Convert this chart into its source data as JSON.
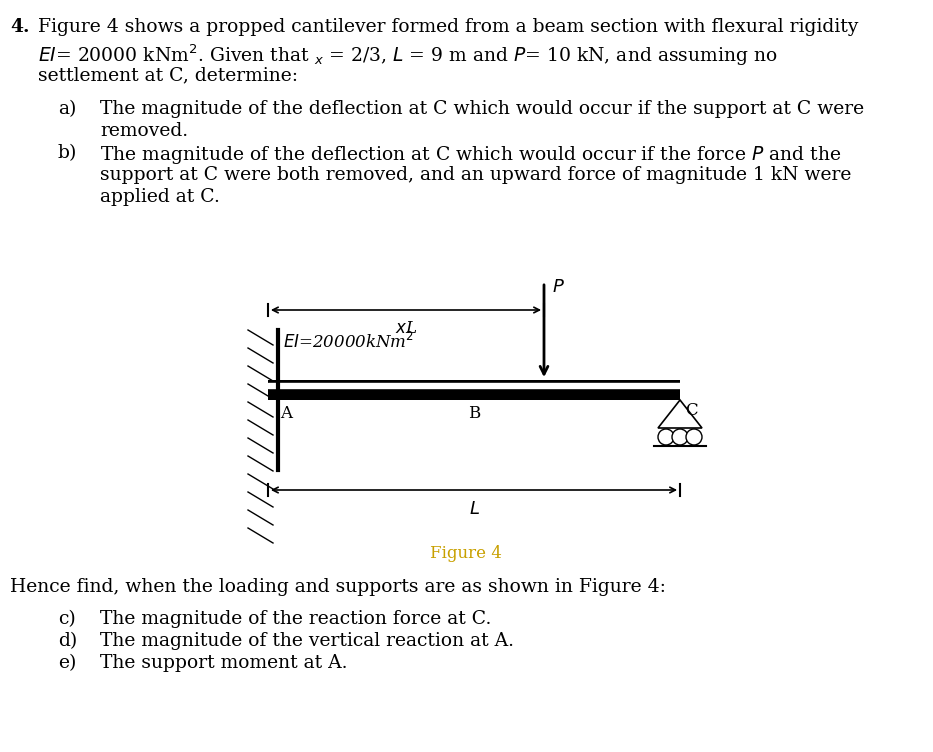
{
  "bg_color": "#ffffff",
  "text_color": "#000000",
  "figure_caption_color": "#c8a000",
  "page_number": "4.",
  "line1": "Figure 4 shows a propped cantilever formed from a beam section with flexural rigidity",
  "line2a": "$EI$",
  "line2b": "= 20000 kNm",
  "line2c": "$^2$",
  "line2d": ". Given that ",
  "line2e": "$_{x}$",
  "line2f": " = 2/3, ",
  "line2g": "$L$",
  "line2h": " = 9 m and ",
  "line2i": "$P$",
  "line2j": "= 10 kN, and assuming no",
  "line3": "settlement at C, determine:",
  "a_label": "a)",
  "a_text1": "The magnitude of the deflection at C which would occur if the support at C were",
  "a_text2": "removed.",
  "b_label": "b)",
  "b_text1": "The magnitude of the deflection at C which would occur if the force $P$ and the",
  "b_text2": "support at C were both removed, and an upward force of magnitude 1 kN were",
  "b_text3": "applied at C.",
  "figure_caption": "Figure 4",
  "hence_text": "Hence find, when the loading and supports are as shown in Figure 4:",
  "c_label": "c)",
  "c_text": "The magnitude of the reaction force at C.",
  "d_label": "d)",
  "d_text": "The magnitude of the vertical reaction at A.",
  "e_label": "e)",
  "e_text": "The support moment at A.",
  "EI_label": "$EI$=20000kNm$^2$",
  "xL_label": "$x$L",
  "P_label": "$P$",
  "A_label": "A",
  "B_label": "B",
  "C_label": "C",
  "L_label": "$L$"
}
